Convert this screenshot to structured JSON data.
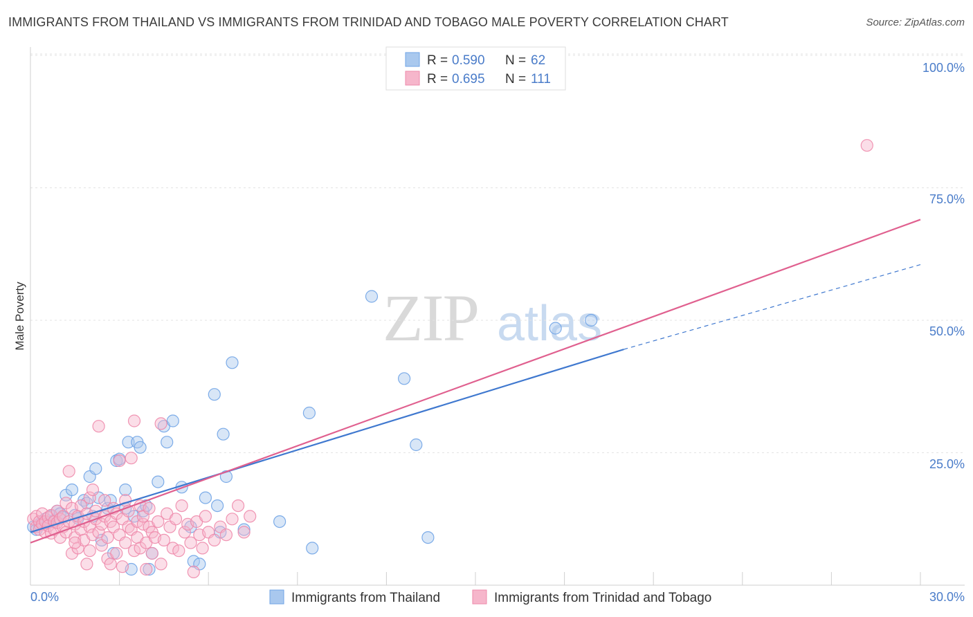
{
  "header": {
    "title": "IMMIGRANTS FROM THAILAND VS IMMIGRANTS FROM TRINIDAD AND TOBAGO MALE POVERTY CORRELATION CHART",
    "source": "Source: ZipAtlas.com"
  },
  "watermark": {
    "zip": "ZIP",
    "atlas": "atlas"
  },
  "legend_top": {
    "rows": [
      {
        "r_label": "R = ",
        "r_value": "0.590",
        "n_label": "N = ",
        "n_value": "62",
        "color": "#a9c8ee"
      },
      {
        "r_label": "R = ",
        "r_value": "0.695",
        "n_label": "N = ",
        "n_value": "111",
        "color": "#f6b6cb"
      }
    ]
  },
  "chart_data": {
    "type": "scatter",
    "title": "IMMIGRANTS FROM THAILAND VS IMMIGRANTS FROM TRINIDAD AND TOBAGO MALE POVERTY CORRELATION CHART",
    "xlabel": "",
    "ylabel": "Male Poverty",
    "xlim": [
      0,
      30
    ],
    "ylim": [
      0,
      100
    ],
    "x_tick_labels": {
      "left": "0.0%",
      "right": "30.0%"
    },
    "y_ticks": [
      {
        "value": 25,
        "label": "25.0%"
      },
      {
        "value": 50,
        "label": "50.0%"
      },
      {
        "value": 75,
        "label": "75.0%"
      },
      {
        "value": 100,
        "label": "100.0%"
      }
    ],
    "grid": true,
    "legend": "top-center",
    "series": [
      {
        "name": "Immigrants from Thailand",
        "color": "#6fa3e6",
        "fill": "#a9c8ee",
        "trend": {
          "x0": 0,
          "y0": 10.0,
          "x1": 20.0,
          "y1": 44.5,
          "dashed_to_x": 30,
          "dashed_to_y": 60.5,
          "color": "#3f78cf"
        },
        "points": [
          [
            0.1,
            11.0
          ],
          [
            0.2,
            10.5
          ],
          [
            0.3,
            11.5
          ],
          [
            0.4,
            12.0
          ],
          [
            0.5,
            12.5
          ],
          [
            0.6,
            11.8
          ],
          [
            0.7,
            13.0
          ],
          [
            0.8,
            12.2
          ],
          [
            0.9,
            14.0
          ],
          [
            1.0,
            13.5
          ],
          [
            1.1,
            12.8
          ],
          [
            1.2,
            17.0
          ],
          [
            1.4,
            18.0
          ],
          [
            1.5,
            13.2
          ],
          [
            1.6,
            12.6
          ],
          [
            1.8,
            16.0
          ],
          [
            1.9,
            15.5
          ],
          [
            2.0,
            20.5
          ],
          [
            2.1,
            13.0
          ],
          [
            2.2,
            22.0
          ],
          [
            2.3,
            16.5
          ],
          [
            2.4,
            8.5
          ],
          [
            2.6,
            14.5
          ],
          [
            2.7,
            16.0
          ],
          [
            2.8,
            6.0
          ],
          [
            2.9,
            23.5
          ],
          [
            3.0,
            23.8
          ],
          [
            3.2,
            14.5
          ],
          [
            3.2,
            18.0
          ],
          [
            3.3,
            27.0
          ],
          [
            3.4,
            3.0
          ],
          [
            3.5,
            13.0
          ],
          [
            3.6,
            27.0
          ],
          [
            3.7,
            26.0
          ],
          [
            3.8,
            14.0
          ],
          [
            3.9,
            15.0
          ],
          [
            4.0,
            3.0
          ],
          [
            4.1,
            6.0
          ],
          [
            4.3,
            19.5
          ],
          [
            4.5,
            30.0
          ],
          [
            4.6,
            27.0
          ],
          [
            4.8,
            31.0
          ],
          [
            5.1,
            18.5
          ],
          [
            5.4,
            11.0
          ],
          [
            5.5,
            4.5
          ],
          [
            5.7,
            4.0
          ],
          [
            5.9,
            16.5
          ],
          [
            6.2,
            36.0
          ],
          [
            6.3,
            15.0
          ],
          [
            6.4,
            10.0
          ],
          [
            6.5,
            28.5
          ],
          [
            6.6,
            20.5
          ],
          [
            6.8,
            42.0
          ],
          [
            7.2,
            10.5
          ],
          [
            8.4,
            12.0
          ],
          [
            9.4,
            32.5
          ],
          [
            9.5,
            7.0
          ],
          [
            11.5,
            54.5
          ],
          [
            12.6,
            39.0
          ],
          [
            13.0,
            26.5
          ],
          [
            13.4,
            9.0
          ],
          [
            17.7,
            48.5
          ],
          [
            18.9,
            50.0
          ]
        ]
      },
      {
        "name": "Immigrants from Trinidad and Tobago",
        "color": "#ee8aab",
        "fill": "#f6b6cb",
        "trend": {
          "x0": 0,
          "y0": 8.0,
          "x1": 30,
          "y1": 69.0,
          "color": "#e0608f"
        },
        "points": [
          [
            0.1,
            12.5
          ],
          [
            0.2,
            11.0
          ],
          [
            0.2,
            13.0
          ],
          [
            0.3,
            12.0
          ],
          [
            0.3,
            10.5
          ],
          [
            0.4,
            11.5
          ],
          [
            0.4,
            13.5
          ],
          [
            0.5,
            12.0
          ],
          [
            0.5,
            10.0
          ],
          [
            0.6,
            12.8
          ],
          [
            0.6,
            11.2
          ],
          [
            0.7,
            13.2
          ],
          [
            0.7,
            9.8
          ],
          [
            0.8,
            12.0
          ],
          [
            0.8,
            10.5
          ],
          [
            0.9,
            11.8
          ],
          [
            0.9,
            14.0
          ],
          [
            1.0,
            12.5
          ],
          [
            1.0,
            9.0
          ],
          [
            1.1,
            13.0
          ],
          [
            1.1,
            11.0
          ],
          [
            1.2,
            15.5
          ],
          [
            1.2,
            10.0
          ],
          [
            1.3,
            21.5
          ],
          [
            1.3,
            12.0
          ],
          [
            1.4,
            6.0
          ],
          [
            1.4,
            14.5
          ],
          [
            1.5,
            11.5
          ],
          [
            1.5,
            9.0
          ],
          [
            1.6,
            13.0
          ],
          [
            1.6,
            7.0
          ],
          [
            1.7,
            10.5
          ],
          [
            1.7,
            15.0
          ],
          [
            1.8,
            12.0
          ],
          [
            1.8,
            8.5
          ],
          [
            1.9,
            4.0
          ],
          [
            1.9,
            13.5
          ],
          [
            2.0,
            11.0
          ],
          [
            2.0,
            16.5
          ],
          [
            2.1,
            9.5
          ],
          [
            2.1,
            18.0
          ],
          [
            2.2,
            12.5
          ],
          [
            2.2,
            14.0
          ],
          [
            2.3,
            30.0
          ],
          [
            2.3,
            10.0
          ],
          [
            2.4,
            11.5
          ],
          [
            2.4,
            7.5
          ],
          [
            2.5,
            13.0
          ],
          [
            2.5,
            16.0
          ],
          [
            2.6,
            5.0
          ],
          [
            2.6,
            9.0
          ],
          [
            2.7,
            12.0
          ],
          [
            2.7,
            4.0
          ],
          [
            2.8,
            14.5
          ],
          [
            2.8,
            11.0
          ],
          [
            2.9,
            6.0
          ],
          [
            2.9,
            13.5
          ],
          [
            3.0,
            23.5
          ],
          [
            3.0,
            9.5
          ],
          [
            3.1,
            12.5
          ],
          [
            3.1,
            3.5
          ],
          [
            3.2,
            16.0
          ],
          [
            3.2,
            8.0
          ],
          [
            3.3,
            11.0
          ],
          [
            3.3,
            14.0
          ],
          [
            3.4,
            24.0
          ],
          [
            3.4,
            10.5
          ],
          [
            3.5,
            6.5
          ],
          [
            3.5,
            31.0
          ],
          [
            3.6,
            12.0
          ],
          [
            3.6,
            9.0
          ],
          [
            3.7,
            15.0
          ],
          [
            3.7,
            7.0
          ],
          [
            3.8,
            11.5
          ],
          [
            3.8,
            13.0
          ],
          [
            3.9,
            8.0
          ],
          [
            4.0,
            11.0
          ],
          [
            4.0,
            14.5
          ],
          [
            4.1,
            6.0
          ],
          [
            4.1,
            10.0
          ],
          [
            4.2,
            9.0
          ],
          [
            4.3,
            12.0
          ],
          [
            4.4,
            30.5
          ],
          [
            4.5,
            8.5
          ],
          [
            4.6,
            13.5
          ],
          [
            4.7,
            11.0
          ],
          [
            4.8,
            7.0
          ],
          [
            4.9,
            12.5
          ],
          [
            5.0,
            6.5
          ],
          [
            5.1,
            15.0
          ],
          [
            5.2,
            10.0
          ],
          [
            5.3,
            11.5
          ],
          [
            5.4,
            8.0
          ],
          [
            5.5,
            2.5
          ],
          [
            5.6,
            12.0
          ],
          [
            5.7,
            9.5
          ],
          [
            5.8,
            7.0
          ],
          [
            5.9,
            13.0
          ],
          [
            6.0,
            10.0
          ],
          [
            6.2,
            8.5
          ],
          [
            6.4,
            11.0
          ],
          [
            6.6,
            9.5
          ],
          [
            6.8,
            12.5
          ],
          [
            7.0,
            15.0
          ],
          [
            7.2,
            10.0
          ],
          [
            7.4,
            13.0
          ],
          [
            3.9,
            3.0
          ],
          [
            4.4,
            4.0
          ],
          [
            1.5,
            8.0
          ],
          [
            2.0,
            6.5
          ],
          [
            28.2,
            83.0
          ]
        ]
      }
    ]
  },
  "legend_bottom": [
    {
      "label": "Immigrants from Thailand"
    },
    {
      "label": "Immigrants from Trinidad and Tobago"
    }
  ]
}
